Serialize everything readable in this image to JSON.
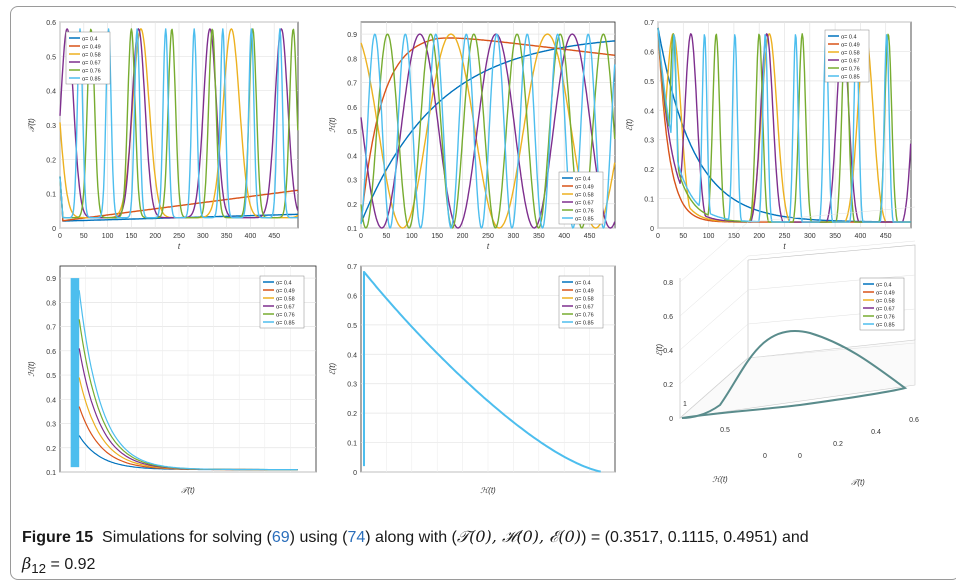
{
  "caption": {
    "label": "Figure 15",
    "text1": "Simulations for solving (",
    "ref1": "69",
    "text2": ") using (",
    "ref2": "74",
    "text3": ") along with (",
    "initial_vars": "𝒯(0), ℋ(0), ℰ(0)",
    "text4": ") = (0.3517, 0.1115, 0.4951) and",
    "beta": "β",
    "beta_sub": "12",
    "beta_val": " = 0.92"
  },
  "colors": [
    "#0072BD",
    "#D95319",
    "#EDB120",
    "#7E2F8E",
    "#77AC30",
    "#4DBEEE"
  ],
  "legend_labels": [
    "α= 0.4",
    "α= 0.49",
    "α= 0.58",
    "α= 0.67",
    "α= 0.76",
    "α= 0.85"
  ],
  "chart_data": [
    {
      "type": "line",
      "xlabel": "t",
      "ylabel": "𝒯(t)",
      "xlim": [
        0,
        500
      ],
      "ylim": [
        0,
        0.6
      ],
      "xticks": [
        "0",
        "50",
        "100",
        "150",
        "200",
        "250",
        "300",
        "350",
        "400",
        "450"
      ],
      "yticks": [
        "0",
        "0.1",
        "0.2",
        "0.3",
        "0.4",
        "0.5",
        "0.6"
      ],
      "legend": "top-left"
    },
    {
      "type": "line",
      "xlabel": "t",
      "ylabel": "ℋ(t)",
      "xlim": [
        0,
        500
      ],
      "ylim": [
        0.1,
        0.95
      ],
      "xticks": [
        "0",
        "50",
        "100",
        "150",
        "200",
        "250",
        "300",
        "350",
        "400",
        "450"
      ],
      "yticks": [
        "0.1",
        "0.2",
        "0.3",
        "0.4",
        "0.5",
        "0.6",
        "0.7",
        "0.8",
        "0.9"
      ],
      "legend": "bottom-right"
    },
    {
      "type": "line",
      "xlabel": "t",
      "ylabel": "ℰ(t)",
      "xlim": [
        0,
        500
      ],
      "ylim": [
        0,
        0.7
      ],
      "xticks": [
        "0",
        "50",
        "100",
        "150",
        "200",
        "250",
        "300",
        "350",
        "400",
        "450"
      ],
      "yticks": [
        "0",
        "0.1",
        "0.2",
        "0.3",
        "0.4",
        "0.5",
        "0.6",
        "0.7"
      ],
      "legend": "top-right"
    },
    {
      "type": "line",
      "xlabel": "𝒯(t)",
      "ylabel": "ℋ(t)",
      "xlim": [
        0,
        0.6
      ],
      "ylim": [
        0.1,
        0.95
      ],
      "xticks": [],
      "yticks": [
        "0.1",
        "0.2",
        "0.3",
        "0.4",
        "0.5",
        "0.6",
        "0.7",
        "0.8",
        "0.9"
      ],
      "legend": "top-right"
    },
    {
      "type": "line",
      "xlabel": "ℋ(t)",
      "ylabel": "ℰ(t)",
      "xlim": [
        0.1,
        0.95
      ],
      "ylim": [
        0,
        0.7
      ],
      "xticks": [],
      "yticks": [
        "0",
        "0.1",
        "0.2",
        "0.3",
        "0.4",
        "0.5",
        "0.6",
        "0.7"
      ],
      "legend": "top-right"
    },
    {
      "type": "line",
      "xlabel": "𝒯(t)",
      "ylabel": "ℰ(t)",
      "zlabel_h": "ℋ(t)",
      "legend": "top-right",
      "zticks": [
        "0",
        "0.2",
        "0.4",
        "0.6",
        "0.8"
      ],
      "xticks": [
        "0",
        "0.2",
        "0.4",
        "0.6"
      ],
      "hticks": [
        "0",
        "0.5",
        "1"
      ]
    }
  ]
}
